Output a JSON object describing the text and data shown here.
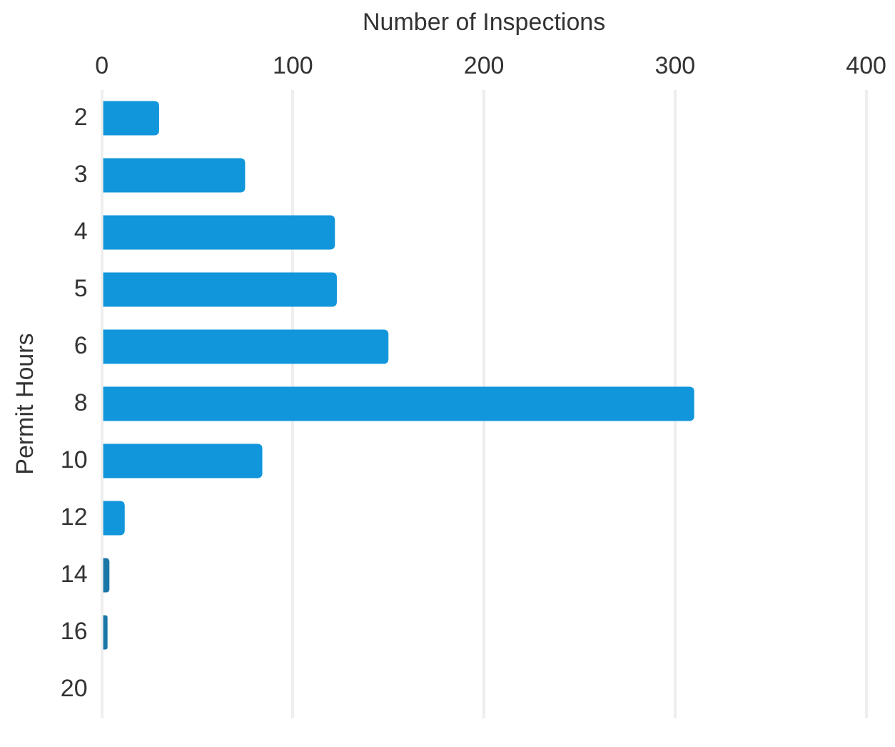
{
  "chart_data": {
    "type": "bar",
    "orientation": "horizontal",
    "xlabel": "Number of Inspections",
    "ylabel": "Permit Hours",
    "categories": [
      "2",
      "3",
      "4",
      "5",
      "6",
      "8",
      "10",
      "12",
      "14",
      "16",
      "20"
    ],
    "values": [
      30,
      75,
      122,
      123,
      150,
      310,
      84,
      12,
      4,
      3,
      null
    ],
    "colors": [
      "#1196db",
      "#1196db",
      "#1196db",
      "#1196db",
      "#1196db",
      "#1196db",
      "#1196db",
      "#1196db",
      "#1a76a8",
      "#1a76a8",
      "#1196db"
    ],
    "xlim": [
      0,
      400
    ],
    "xticks": [
      0,
      100,
      200,
      300,
      400
    ],
    "grid": "x"
  }
}
